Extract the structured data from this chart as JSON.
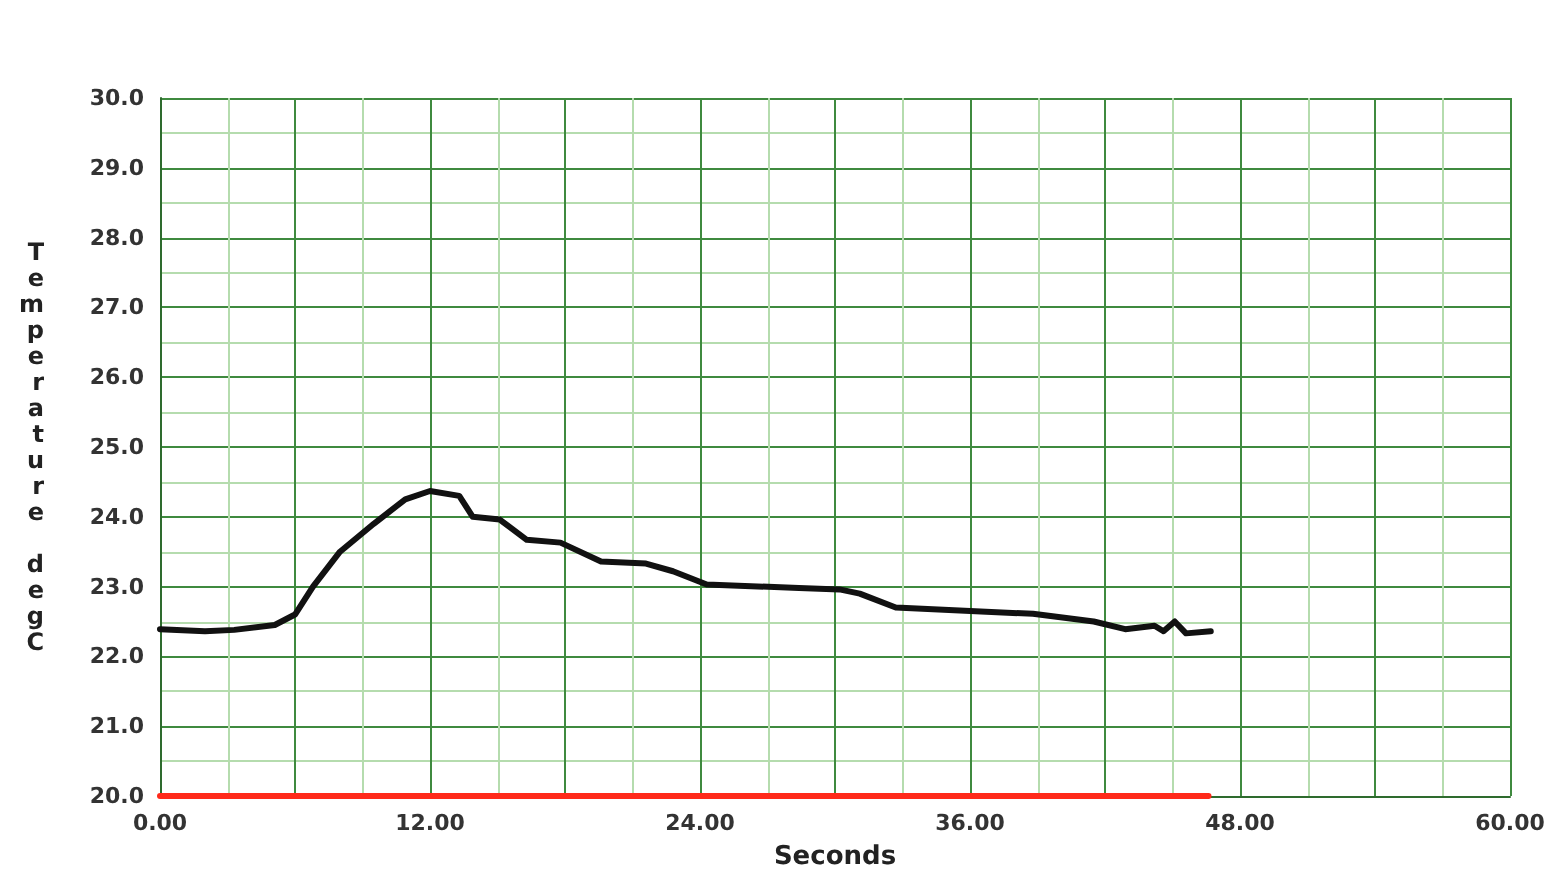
{
  "chart_data": {
    "type": "line",
    "xlabel": "Seconds",
    "ylabel": "Temperature degC",
    "xlim": [
      0,
      60
    ],
    "xticks": [
      {
        "value": 0,
        "label": "0.00"
      },
      {
        "value": 3,
        "label": null
      },
      {
        "value": 6,
        "label": null
      },
      {
        "value": 9,
        "label": null
      },
      {
        "value": 12,
        "label": "12.00"
      },
      {
        "value": 15,
        "label": null
      },
      {
        "value": 18,
        "label": null
      },
      {
        "value": 21,
        "label": null
      },
      {
        "value": 24,
        "label": "24.00"
      },
      {
        "value": 27,
        "label": null
      },
      {
        "value": 30,
        "label": null
      },
      {
        "value": 33,
        "label": null
      },
      {
        "value": 36,
        "label": "36.00"
      },
      {
        "value": 39,
        "label": null
      },
      {
        "value": 42,
        "label": null
      },
      {
        "value": 45,
        "label": null
      },
      {
        "value": 48,
        "label": "48.00"
      },
      {
        "value": 51,
        "label": null
      },
      {
        "value": 54,
        "label": null
      },
      {
        "value": 57,
        "label": null
      },
      {
        "value": 60,
        "label": "60.00"
      }
    ],
    "ylim": [
      20,
      30
    ],
    "yticks": [
      {
        "value": 20,
        "label": "20.0"
      },
      {
        "value": 20.5,
        "label": null
      },
      {
        "value": 21,
        "label": "21.0"
      },
      {
        "value": 21.5,
        "label": null
      },
      {
        "value": 22,
        "label": "22.0"
      },
      {
        "value": 22.5,
        "label": null
      },
      {
        "value": 23,
        "label": "23.0"
      },
      {
        "value": 23.5,
        "label": null
      },
      {
        "value": 24,
        "label": "24.0"
      },
      {
        "value": 24.5,
        "label": null
      },
      {
        "value": 25,
        "label": "25.0"
      },
      {
        "value": 25.5,
        "label": null
      },
      {
        "value": 26,
        "label": "26.0"
      },
      {
        "value": 26.5,
        "label": null
      },
      {
        "value": 27,
        "label": "27.0"
      },
      {
        "value": 27.5,
        "label": null
      },
      {
        "value": 28,
        "label": "28.0"
      },
      {
        "value": 28.5,
        "label": null
      },
      {
        "value": 29,
        "label": "29.0"
      },
      {
        "value": 29.5,
        "label": null
      },
      {
        "value": 30,
        "label": "30.0"
      }
    ],
    "grid": true,
    "marker": "none",
    "line_style": "solid",
    "series": [
      {
        "color": "#111111",
        "x": [
          0,
          2.0,
          3.3,
          5.1,
          6.0,
          6.8,
          8.0,
          9.5,
          10.9,
          12.0,
          13.3,
          13.9,
          15.1,
          16.3,
          17.8,
          19.6,
          21.6,
          22.8,
          24.3,
          28.4,
          30.2,
          31.1,
          32.7,
          38.8,
          41.5,
          42.9,
          44.2,
          44.6,
          45.1,
          45.6,
          46.7
        ],
        "values": [
          22.39,
          22.36,
          22.38,
          22.45,
          22.6,
          23.0,
          23.5,
          23.9,
          24.25,
          24.37,
          24.3,
          24.0,
          23.96,
          23.67,
          23.63,
          23.36,
          23.33,
          23.22,
          23.03,
          22.98,
          22.96,
          22.9,
          22.7,
          22.61,
          22.5,
          22.39,
          22.44,
          22.36,
          22.5,
          22.33,
          22.36
        ]
      },
      {
        "color": "#ff2a1a",
        "x": [
          0,
          46.6
        ],
        "values": [
          20,
          20
        ]
      }
    ]
  }
}
